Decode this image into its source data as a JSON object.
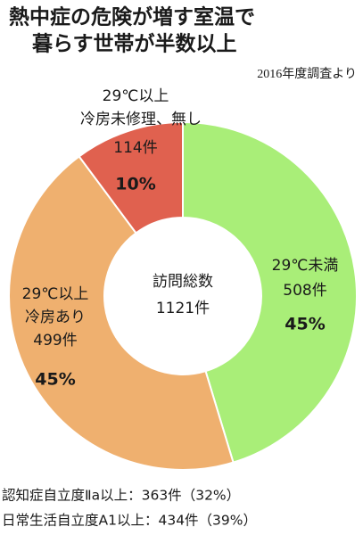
{
  "chart_data": {
    "type": "donut",
    "title": [
      "熱中症の危険が増す室温で",
      "暮らす世帯が半数以上"
    ],
    "subtitle": "2016年度調査より",
    "categories": [
      [
        "29℃未満"
      ],
      [
        "29℃以上",
        "冷房あり"
      ],
      [
        "29℃以上",
        "冷房未修理、無し"
      ]
    ],
    "values": [
      508,
      499,
      114
    ],
    "value_labels": [
      "508件",
      "499件",
      "114件"
    ],
    "percents": [
      45,
      45,
      10
    ],
    "percent_labels": [
      "45%",
      "45%",
      "10%"
    ],
    "colors": [
      "#a9ee78",
      "#efb06f",
      "#e0614f"
    ],
    "center_title": "訪問総数",
    "total": {
      "value": 1121,
      "label": "1121件"
    },
    "notes": [
      "認知症自立度Ⅱa以上：363件（32%）",
      "日常生活自立度A1以上：434件（39%）"
    ]
  }
}
